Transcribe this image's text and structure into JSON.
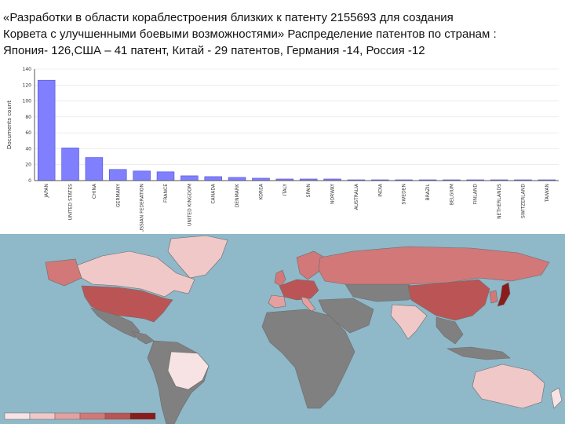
{
  "caption": {
    "line1": "«Разработки в области кораблестроения близких  к патенту 2155693  для создания",
    "line2": " Корвета  с улучшенными боевыми возможностями» Распределение патентов по странам :",
    "line3": "Япония- 126,США – 41 патент, Китай -  29 патентов,  Германия -14, Россия -12"
  },
  "chart_data": {
    "type": "bar",
    "ylabel": "Documents count",
    "ylim": [
      0,
      140
    ],
    "yticks": [
      0,
      20,
      40,
      60,
      80,
      100,
      120,
      140
    ],
    "categories": [
      "JAPAN",
      "UNITED STATES",
      "CHINA",
      "GERMANY",
      "RUSSIAN FEDERATION",
      "FRANCE",
      "UNITED KINGDOM",
      "CANADA",
      "DENMARK",
      "KOREA",
      "ITALY",
      "SPAIN",
      "NORWAY",
      "AUSTRALIA",
      "INDIA",
      "SWEDEN",
      "BRAZIL",
      "BELGIUM",
      "FINLAND",
      "NETHERLANDS",
      "SWITZERLAND",
      "TAIWAN"
    ],
    "values": [
      126,
      41,
      29,
      14,
      12,
      11,
      6,
      5,
      4,
      3,
      2,
      2,
      2,
      1,
      1,
      1,
      1,
      1,
      1,
      1,
      1,
      1
    ],
    "bar_color": "#8080ff"
  },
  "map": {
    "ocean_color": "#8fb8c9",
    "no_data_color": "#808080",
    "legend_colors": [
      "#f7e3e3",
      "#f0c8c8",
      "#e4a0a0",
      "#d27878",
      "#bb5555",
      "#8a1c1c"
    ]
  }
}
